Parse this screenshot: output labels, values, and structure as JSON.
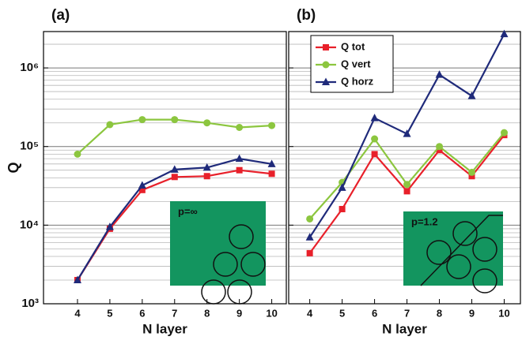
{
  "chart_data": [
    {
      "type": "line",
      "title": "(a)",
      "x_label": "N layer",
      "y_label": "Q",
      "log_scale": true,
      "grid": true,
      "x": [
        4,
        5,
        6,
        7,
        8,
        9,
        10
      ],
      "xlim": [
        2.95,
        10.45
      ],
      "xticks": [
        4,
        5,
        6,
        7,
        8,
        9,
        10
      ],
      "ylim": [
        1000,
        2900000
      ],
      "yticks": [
        {
          "value": 1000,
          "label": "10³"
        },
        {
          "value": 10000,
          "label": "10⁴"
        },
        {
          "value": 100000,
          "label": "10⁵"
        },
        {
          "value": 1000000,
          "label": "10⁶"
        }
      ],
      "inset_label": "p=∞",
      "series": [
        {
          "name": "Q tot",
          "color": "#e8202a",
          "marker": "square",
          "values": [
            2000,
            9000,
            28000,
            41000,
            42000,
            50000,
            45000
          ]
        },
        {
          "name": "Q vert",
          "color": "#8cc63f",
          "marker": "circle",
          "values": [
            80000,
            190000,
            220000,
            220000,
            200000,
            175000,
            185000
          ]
        },
        {
          "name": "Q horz",
          "color": "#1f2a7a",
          "marker": "triangle",
          "values": [
            2000,
            9500,
            32000,
            51000,
            54000,
            70000,
            60000
          ]
        }
      ]
    },
    {
      "type": "line",
      "title": "(b)",
      "x_label": "N layer",
      "log_scale": true,
      "grid": true,
      "legend": "upper left",
      "x": [
        4,
        5,
        6,
        7,
        8,
        9,
        10
      ],
      "xlim": [
        3.35,
        10.5
      ],
      "xticks": [
        4,
        5,
        6,
        7,
        8,
        9,
        10
      ],
      "ylim": [
        1000,
        2900000
      ],
      "inset_label": "p=1.2",
      "series": [
        {
          "name": "Q tot",
          "color": "#e8202a",
          "marker": "square",
          "values": [
            4400,
            16000,
            80000,
            27000,
            90000,
            42000,
            140000
          ]
        },
        {
          "name": "Q vert",
          "color": "#8cc63f",
          "marker": "circle",
          "values": [
            12000,
            35000,
            125000,
            33000,
            100000,
            47000,
            150000
          ]
        },
        {
          "name": "Q horz",
          "color": "#1f2a7a",
          "marker": "triangle",
          "values": [
            7000,
            30000,
            230000,
            145000,
            820000,
            440000,
            2700000
          ]
        }
      ]
    }
  ]
}
